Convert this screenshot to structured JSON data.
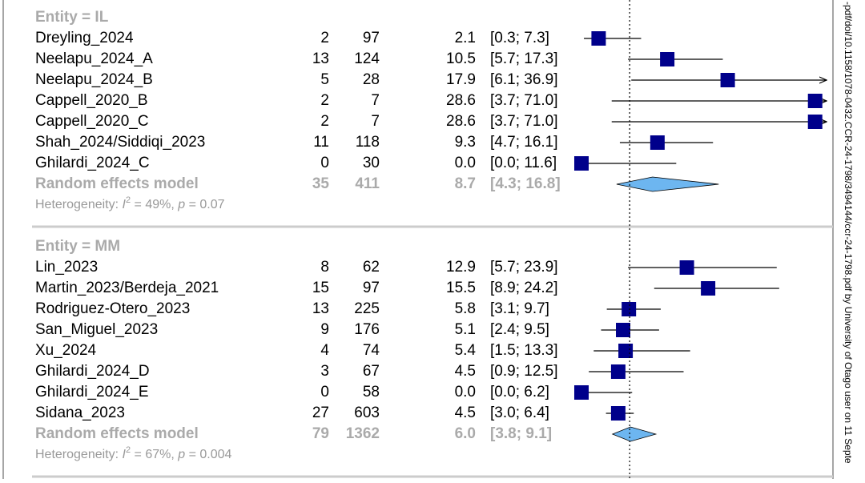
{
  "chart_data": {
    "type": "forest",
    "xlim": [
      0,
      30
    ],
    "ref_line": 5.9,
    "color": "#00008b",
    "diamond_color": "#6db6f0",
    "groups": [
      {
        "title": "Entity = IL",
        "studies": [
          "Dreyling_2024",
          "Neelapu_2024_A",
          "Neelapu_2024_B",
          "Cappell_2020_B",
          "Cappell_2020_C",
          "Shah_2024/Siddiqi_2023",
          "Ghilardi_2024_C"
        ],
        "events": [
          2,
          13,
          5,
          2,
          2,
          11,
          0
        ],
        "totals": [
          97,
          124,
          28,
          7,
          7,
          118,
          30
        ],
        "values": [
          2.1,
          10.5,
          17.9,
          28.6,
          28.6,
          9.3,
          0
        ],
        "value_labels": [
          "2.1",
          "10.5",
          "17.9",
          "28.6",
          "28.6",
          "9.3",
          "0.0"
        ],
        "lower": [
          0.3,
          5.7,
          6.1,
          3.7,
          3.7,
          4.7,
          0
        ],
        "upper": [
          7.3,
          17.3,
          36.9,
          71,
          71,
          16.1,
          11.6
        ],
        "ci_labels": [
          "[0.3; 7.3]",
          "[5.7; 17.3]",
          "[6.1; 36.9]",
          "[3.7; 71.0]",
          "[3.7; 71.0]",
          "[4.7; 16.1]",
          "[0.0; 11.6]"
        ],
        "pooled": {
          "label": "Random effects model",
          "events": 35,
          "total": 411,
          "value": 8.7,
          "value_label": "8.7",
          "lower": 4.3,
          "upper": 16.8,
          "ci_label": "[4.3; 16.8]"
        },
        "heterogeneity": [
          "Heterogeneity: ",
          "I",
          "2",
          " = 49%, ",
          "p",
          " = 0.07"
        ]
      },
      {
        "title": "Entity = MM",
        "studies": [
          "Lin_2023",
          "Martin_2023/Berdeja_2021",
          "Rodriguez-Otero_2023",
          "San_Miguel_2023",
          "Xu_2024",
          "Ghilardi_2024_D",
          "Ghilardi_2024_E",
          "Sidana_2023"
        ],
        "events": [
          8,
          15,
          13,
          9,
          4,
          3,
          0,
          27
        ],
        "totals": [
          62,
          97,
          225,
          176,
          74,
          67,
          58,
          603
        ],
        "values": [
          12.9,
          15.5,
          5.8,
          5.1,
          5.4,
          4.5,
          0,
          4.5
        ],
        "value_labels": [
          "12.9",
          "15.5",
          "5.8",
          "5.1",
          "5.4",
          "4.5",
          "0.0",
          "4.5"
        ],
        "lower": [
          5.7,
          8.9,
          3.1,
          2.4,
          1.5,
          0.9,
          0,
          3
        ],
        "upper": [
          23.9,
          24.2,
          9.7,
          9.5,
          13.3,
          12.5,
          6.2,
          6.4
        ],
        "ci_labels": [
          "[5.7; 23.9]",
          "[8.9; 24.2]",
          "[3.1; 9.7]",
          "[2.4; 9.5]",
          "[1.5; 13.3]",
          "[0.9; 12.5]",
          "[0.0; 6.2]",
          "[3.0; 6.4]"
        ],
        "pooled": {
          "label": "Random effects model",
          "events": 79,
          "total": 1362,
          "value": 6,
          "value_label": "6.0",
          "lower": 3.8,
          "upper": 9.1,
          "ci_label": "[3.8; 9.1]"
        },
        "heterogeneity": [
          "Heterogeneity: ",
          "I",
          "2",
          " = 67%, ",
          "p",
          " = 0.004"
        ]
      }
    ]
  },
  "watermark": "-pdf/doi/10.1158/1078-0432.CCR-24-1798/3494144/ccr-24-1798.pdf by University of Otago user on 11 Septe"
}
